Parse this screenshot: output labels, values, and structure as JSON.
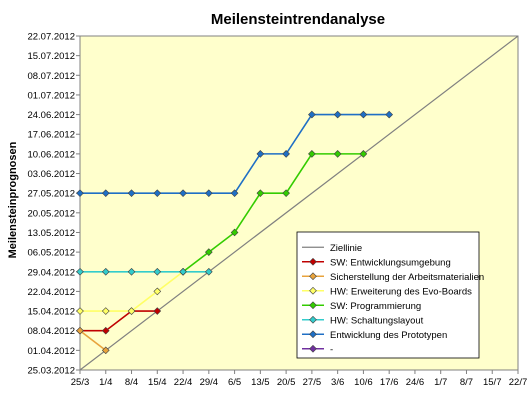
{
  "chart_data": {
    "type": "line",
    "title": "Meilensteintrendanalyse",
    "xlabel": "",
    "ylabel": "Meilensteinprognosen",
    "x_ticks": [
      "25/3",
      "1/4",
      "8/4",
      "15/4",
      "22/4",
      "29/4",
      "6/5",
      "13/5",
      "20/5",
      "27/5",
      "3/6",
      "10/6",
      "17/6",
      "24/6",
      "1/7",
      "8/7",
      "15/7",
      "22/7"
    ],
    "y_ticks": [
      "25.03.2012",
      "01.04.2012",
      "08.04.2012",
      "15.04.2012",
      "22.04.2012",
      "29.04.2012",
      "06.05.2012",
      "13.05.2012",
      "20.05.2012",
      "27.05.2012",
      "03.06.2012",
      "10.06.2012",
      "17.06.2012",
      "24.06.2012",
      "01.07.2012",
      "08.07.2012",
      "15.07.2012",
      "22.07.2012"
    ],
    "xlim": [
      "2012-03-25",
      "2012-07-22"
    ],
    "ylim": [
      "2012-03-25",
      "2012-07-22"
    ],
    "grid": false,
    "legend_position": "lower-right",
    "series": [
      {
        "name": "Ziellinie",
        "color": "#808080",
        "marker": "none",
        "points": [
          [
            "2012-03-25",
            "2012-03-25"
          ],
          [
            "2012-07-22",
            "2012-07-22"
          ]
        ]
      },
      {
        "name": "SW: Entwicklungsumgebung",
        "color": "#c00000",
        "marker": "diamond",
        "points": [
          [
            "2012-03-25",
            "2012-04-08"
          ],
          [
            "2012-04-01",
            "2012-04-08"
          ],
          [
            "2012-04-08",
            "2012-04-15"
          ],
          [
            "2012-04-15",
            "2012-04-15"
          ]
        ]
      },
      {
        "name": "Sicherstellung der Arbeitsmaterialien",
        "color": "#e8a33c",
        "marker": "diamond",
        "points": [
          [
            "2012-03-25",
            "2012-04-08"
          ],
          [
            "2012-04-01",
            "2012-04-01"
          ]
        ]
      },
      {
        "name": "HW: Erweiterung des Evo-Boards",
        "color": "#ffff66",
        "marker": "diamond",
        "points": [
          [
            "2012-03-25",
            "2012-04-15"
          ],
          [
            "2012-04-01",
            "2012-04-15"
          ],
          [
            "2012-04-08",
            "2012-04-15"
          ],
          [
            "2012-04-15",
            "2012-04-22"
          ],
          [
            "2012-04-22",
            "2012-04-29"
          ]
        ]
      },
      {
        "name": "SW: Programmierung",
        "color": "#33cc00",
        "marker": "diamond",
        "points": [
          [
            "2012-04-22",
            "2012-04-29"
          ],
          [
            "2012-04-29",
            "2012-05-06"
          ],
          [
            "2012-05-06",
            "2012-05-13"
          ],
          [
            "2012-05-13",
            "2012-05-27"
          ],
          [
            "2012-05-20",
            "2012-05-27"
          ],
          [
            "2012-05-27",
            "2012-06-10"
          ],
          [
            "2012-06-03",
            "2012-06-10"
          ],
          [
            "2012-06-10",
            "2012-06-10"
          ]
        ]
      },
      {
        "name": "HW: Schaltungslayout",
        "color": "#33cccc",
        "marker": "diamond",
        "points": [
          [
            "2012-03-25",
            "2012-04-29"
          ],
          [
            "2012-04-01",
            "2012-04-29"
          ],
          [
            "2012-04-08",
            "2012-04-29"
          ],
          [
            "2012-04-15",
            "2012-04-29"
          ],
          [
            "2012-04-22",
            "2012-04-29"
          ],
          [
            "2012-04-29",
            "2012-04-29"
          ]
        ]
      },
      {
        "name": "Entwicklung des Prototypen",
        "color": "#1f6fc5",
        "marker": "diamond",
        "points": [
          [
            "2012-03-25",
            "2012-05-27"
          ],
          [
            "2012-04-01",
            "2012-05-27"
          ],
          [
            "2012-04-08",
            "2012-05-27"
          ],
          [
            "2012-04-15",
            "2012-05-27"
          ],
          [
            "2012-04-22",
            "2012-05-27"
          ],
          [
            "2012-04-29",
            "2012-05-27"
          ],
          [
            "2012-05-06",
            "2012-05-27"
          ],
          [
            "2012-05-13",
            "2012-06-10"
          ],
          [
            "2012-05-20",
            "2012-06-10"
          ],
          [
            "2012-05-27",
            "2012-06-24"
          ],
          [
            "2012-06-03",
            "2012-06-24"
          ],
          [
            "2012-06-10",
            "2012-06-24"
          ],
          [
            "2012-06-17",
            "2012-06-24"
          ]
        ]
      },
      {
        "name": "-",
        "color": "#7030a0",
        "marker": "diamond",
        "points": []
      }
    ]
  }
}
